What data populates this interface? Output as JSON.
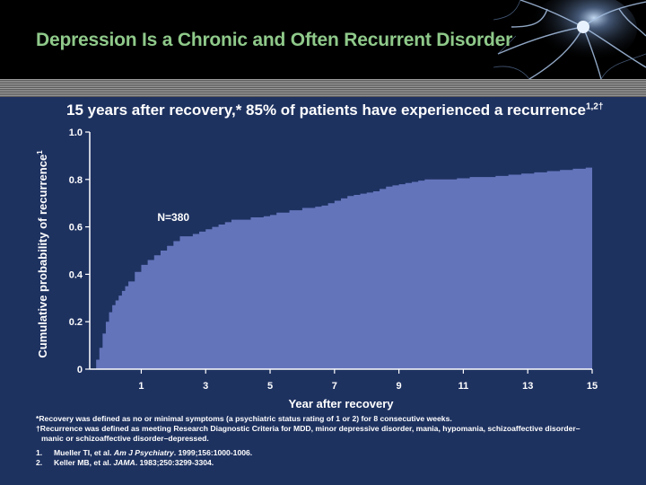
{
  "slide": {
    "title": "Depression Is a Chronic and Often Recurrent Disorder",
    "subtitle_main": "15 years after recovery,* 85% of patients have experienced a recurrence",
    "subtitle_sup": "1,2†"
  },
  "colors": {
    "header_bg": "#000000",
    "title_green": "#8fc98a",
    "panel_bg": "#1e3260",
    "area_fill": "#6474bb",
    "text": "#ffffff"
  },
  "chart_data": {
    "type": "area",
    "title": "15 years after recovery,* 85% of patients have experienced a recurrence",
    "xlabel": "Year after recovery",
    "ylabel": "Cumulative probability of recurrence",
    "ylabel_sup": "1",
    "annotation": "N=380",
    "xlim": [
      -0.6,
      15
    ],
    "ylim": [
      0,
      1.0
    ],
    "xticks": [
      1,
      3,
      5,
      7,
      9,
      11,
      13,
      15
    ],
    "xtick_labels": [
      "1",
      "3",
      "5",
      "7",
      "9",
      "11",
      "13",
      "15"
    ],
    "yticks": [
      0,
      0.2,
      0.4,
      0.6,
      0.8,
      1.0
    ],
    "ytick_labels": [
      "0",
      "0.2",
      "0.4",
      "0.6",
      "0.8",
      "1.0"
    ],
    "series": [
      {
        "name": "Cumulative probability of recurrence",
        "x": [
          -0.55,
          -0.4,
          -0.3,
          -0.2,
          -0.1,
          0.0,
          0.1,
          0.2,
          0.3,
          0.4,
          0.5,
          0.6,
          0.8,
          1.0,
          1.2,
          1.4,
          1.6,
          1.8,
          2.0,
          2.2,
          2.4,
          2.6,
          2.8,
          3.0,
          3.2,
          3.4,
          3.6,
          3.8,
          4.0,
          4.2,
          4.4,
          4.6,
          4.8,
          5.0,
          5.2,
          5.4,
          5.6,
          5.8,
          6.0,
          6.2,
          6.4,
          6.6,
          6.8,
          7.0,
          7.2,
          7.4,
          7.6,
          7.8,
          8.0,
          8.2,
          8.4,
          8.6,
          8.8,
          9.0,
          9.2,
          9.4,
          9.6,
          9.8,
          10.0,
          10.4,
          10.8,
          11.2,
          11.6,
          12.0,
          12.4,
          12.8,
          13.2,
          13.6,
          14.0,
          14.4,
          14.8,
          15.0
        ],
        "y": [
          0.0,
          0.04,
          0.09,
          0.15,
          0.2,
          0.24,
          0.27,
          0.29,
          0.31,
          0.33,
          0.35,
          0.37,
          0.41,
          0.44,
          0.46,
          0.48,
          0.5,
          0.52,
          0.54,
          0.56,
          0.56,
          0.57,
          0.58,
          0.59,
          0.6,
          0.61,
          0.62,
          0.63,
          0.63,
          0.63,
          0.64,
          0.64,
          0.645,
          0.65,
          0.66,
          0.66,
          0.67,
          0.67,
          0.68,
          0.68,
          0.685,
          0.69,
          0.7,
          0.71,
          0.72,
          0.73,
          0.735,
          0.74,
          0.745,
          0.75,
          0.76,
          0.77,
          0.775,
          0.78,
          0.785,
          0.79,
          0.795,
          0.8,
          0.8,
          0.8,
          0.805,
          0.81,
          0.81,
          0.815,
          0.82,
          0.825,
          0.83,
          0.835,
          0.84,
          0.845,
          0.85,
          0.85
        ]
      }
    ]
  },
  "footnotes": [
    "*Recovery was defined as no or minimal symptoms (a psychiatric status rating of 1 or 2) for 8 consecutive weeks.",
    "†Recurrence was defined as meeting Research Diagnostic Criteria for MDD, minor depressive disorder, mania, hypomania, schizoaffective disorder–",
    "manic or schizoaffective disorder–depressed."
  ],
  "references": [
    {
      "num": "1.",
      "authors": "Mueller TI, et al.",
      "journal": "Am J Psychiatry",
      "details": ". 1999;156:1000-1006."
    },
    {
      "num": "2.",
      "authors": "Keller MB, et al.",
      "journal": "JAMA",
      "details": ". 1983;250:3299-3304."
    }
  ]
}
